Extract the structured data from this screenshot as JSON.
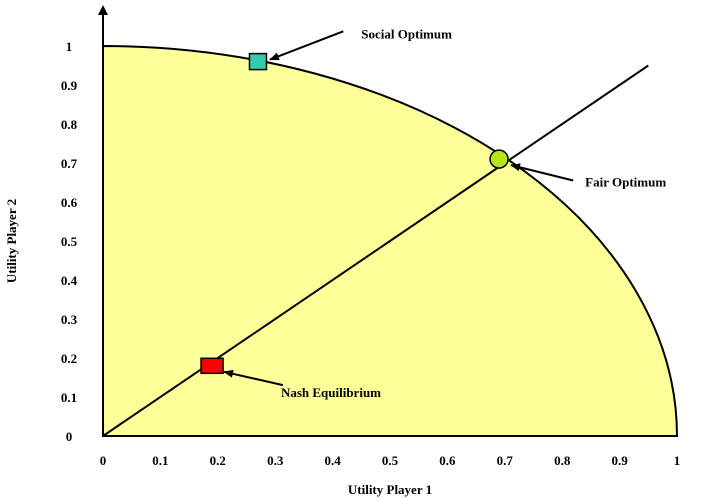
{
  "chart_data": {
    "type": "line",
    "title": "",
    "xlabel": "Utility Player 1",
    "ylabel": "Utility Player 2",
    "xlim": [
      0,
      1
    ],
    "ylim": [
      0,
      1
    ],
    "x_ticks": [
      "0",
      "0.1",
      "0.2",
      "0.3",
      "0.4",
      "0.5",
      "0.6",
      "0.7",
      "0.8",
      "0.9",
      "1"
    ],
    "y_ticks": [
      "0",
      "0.1",
      "0.2",
      "0.3",
      "0.4",
      "0.5",
      "0.6",
      "0.7",
      "0.8",
      "0.9",
      "1"
    ],
    "grid": false,
    "region": {
      "shape": "quarter-circle",
      "radius": 1,
      "fill": "#FFFF99",
      "edge_color": "#000000"
    },
    "fairness_line": {
      "slope": 1,
      "x": [
        0,
        0.95
      ],
      "y": [
        0,
        0.95
      ],
      "color": "#000000"
    },
    "points": [
      {
        "label": "Nash Equilibrium",
        "x": 0.19,
        "y": 0.18,
        "marker": "square",
        "color": "#FF0000",
        "label_x": 0.31,
        "label_y": 0.11
      },
      {
        "label": "Social Optimum",
        "x": 0.27,
        "y": 0.96,
        "marker": "square",
        "color": "#33CCAA",
        "label_x": 0.45,
        "label_y": 1.03
      },
      {
        "label": "Fair Optimum",
        "x": 0.69,
        "y": 0.71,
        "marker": "circle",
        "color": "#B5E61D",
        "label_x": 0.84,
        "label_y": 0.65
      }
    ]
  }
}
